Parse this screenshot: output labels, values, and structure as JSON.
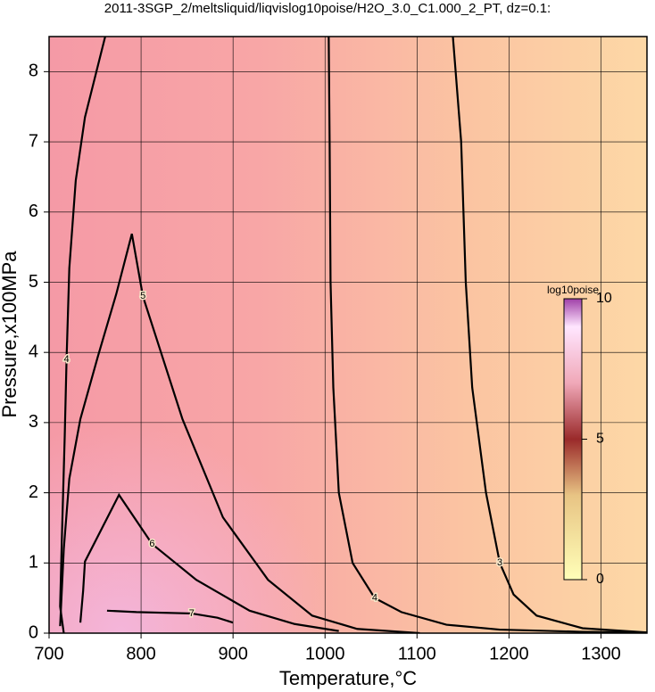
{
  "chart_data": {
    "type": "contour",
    "title": "2011-3SGP_2/meltsliquid/liqvislog10poise/H2O_3.0_C1.000_2_PT, dz=0.1:",
    "x_label": "Temperature,°C",
    "y_label": "Pressure,x100MPa",
    "xlim": [
      700,
      1350
    ],
    "ylim": [
      0,
      8.5
    ],
    "xticks": [
      700,
      800,
      900,
      1000,
      1100,
      1200,
      1300
    ],
    "yticks": [
      0,
      1,
      2,
      3,
      4,
      5,
      6,
      7,
      8
    ],
    "grid": true,
    "contours": [
      {
        "level": 3,
        "x": [
          1139,
          1148,
          1153,
          1160,
          1175,
          1190,
          1205,
          1230,
          1280,
          1350
        ],
        "y": [
          8.5,
          7,
          5,
          3.5,
          2,
          1,
          0.55,
          0.25,
          0.07,
          0.01
        ]
      },
      {
        "level": 4,
        "x": [
          1004,
          1005,
          1006,
          1009,
          1015,
          1030,
          1054,
          1083,
          1132,
          1190,
          1277,
          1350
        ],
        "y": [
          8.5,
          7,
          5,
          3.5,
          2,
          1,
          0.5,
          0.3,
          0.12,
          0.05,
          0.02,
          0.01
        ]
      },
      {
        "level": 4,
        "x": [
          761,
          739,
          729,
          722,
          719,
          717,
          714,
          712,
          716
        ],
        "y": [
          8.5,
          7.35,
          6.45,
          5.2,
          3.9,
          2.8,
          1.4,
          0.38,
          0
        ]
      },
      {
        "level": 5,
        "x": [
          712,
          716,
          722,
          734,
          753,
          773,
          790,
          802,
          845,
          889,
          938,
          986,
          1035,
          1103
        ],
        "y": [
          0.1,
          1.2,
          2.2,
          3.05,
          3.94,
          4.83,
          5.69,
          4.8,
          3.05,
          1.65,
          0.76,
          0.25,
          0.06,
          0
        ]
      },
      {
        "level": 6,
        "x": [
          734,
          737,
          739,
          776,
          812,
          860,
          918,
          967,
          1015
        ],
        "y": [
          0.15,
          0.6,
          1.02,
          1.97,
          1.27,
          0.76,
          0.32,
          0.13,
          0.03
        ]
      },
      {
        "level": 7,
        "x": [
          763,
          795,
          855,
          883,
          900
        ],
        "y": [
          0.32,
          0.3,
          0.28,
          0.22,
          0.15
        ]
      }
    ],
    "colorbar": {
      "label": "log10poise",
      "lim": [
        0,
        10
      ],
      "ticks": [
        0,
        5,
        10
      ]
    }
  }
}
